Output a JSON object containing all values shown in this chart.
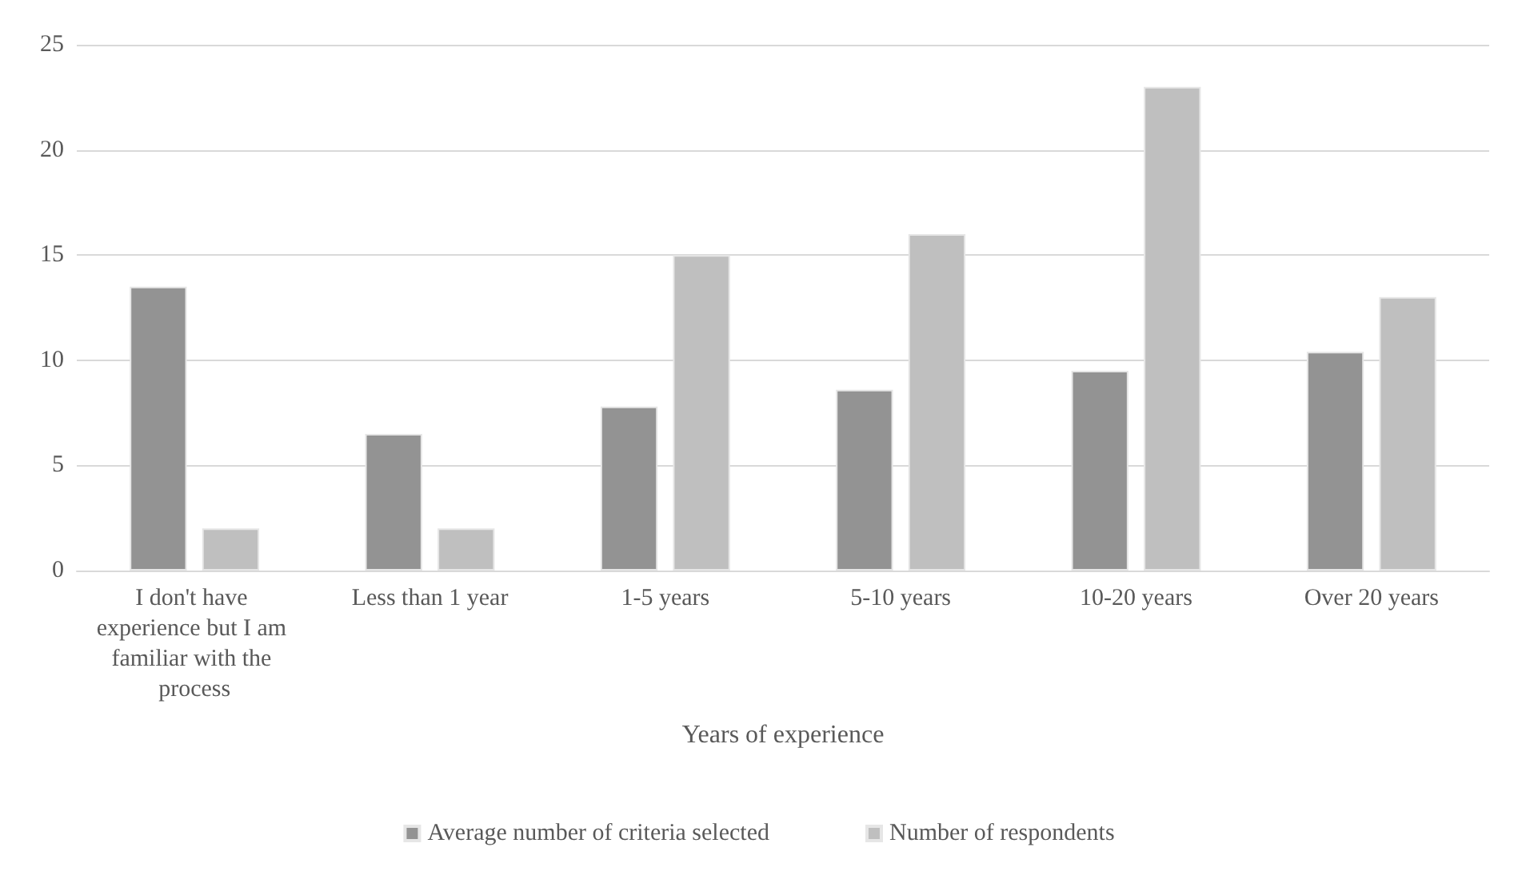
{
  "chart_data": {
    "type": "bar",
    "xlabel": "Years of experience",
    "categories": [
      "I don't have experience but I am familiar with the process",
      "Less than 1 year",
      "1-5 years",
      "5-10 years",
      "10-20 years",
      "Over 20 years"
    ],
    "series": [
      {
        "name": "Average number of criteria selected",
        "color": "#939393",
        "values": [
          13.5,
          6.5,
          7.8,
          8.6,
          9.5,
          10.4
        ]
      },
      {
        "name": "Number of respondents",
        "color": "#bfbfbf",
        "values": [
          2,
          2,
          15,
          16,
          23,
          13
        ]
      }
    ],
    "ylim": [
      0,
      25
    ],
    "yticks": [
      0,
      5,
      10,
      15,
      20,
      25
    ],
    "grid": "y",
    "legend": "bottom"
  }
}
